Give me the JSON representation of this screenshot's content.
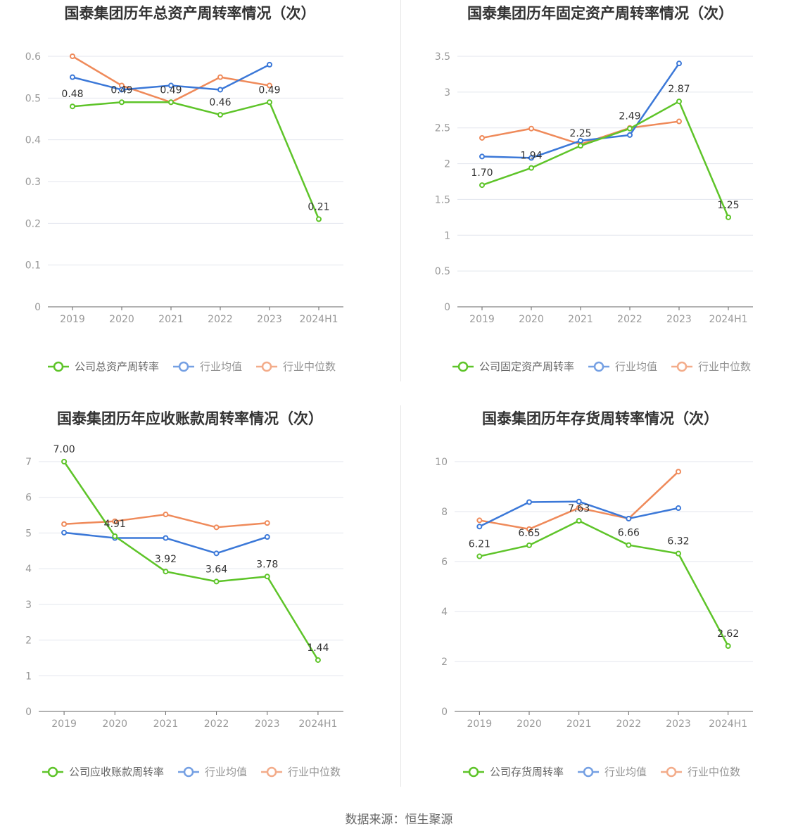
{
  "colors": {
    "company": "#5ec429",
    "mean": "#3b78d8",
    "median": "#ef8a5a"
  },
  "source": "数据来源：恒生聚源",
  "chart_data": [
    {
      "type": "line",
      "title": "国泰集团历年总资产周转率情况（次）",
      "categories": [
        "2019",
        "2020",
        "2021",
        "2022",
        "2023",
        "2024H1"
      ],
      "yticks": [
        "0",
        "0.1",
        "0.2",
        "0.3",
        "0.4",
        "0.5",
        "0.6"
      ],
      "ylim": [
        0,
        0.6
      ],
      "series": [
        {
          "name": "公司总资产周转率",
          "values": [
            0.48,
            0.49,
            0.49,
            0.46,
            0.49,
            0.21
          ],
          "labels": [
            "0.48",
            "0.49",
            "0.49",
            "0.46",
            "0.49",
            "0.21"
          ]
        },
        {
          "name": "行业均值",
          "values": [
            0.55,
            0.52,
            0.53,
            0.52,
            0.58,
            null
          ]
        },
        {
          "name": "行业中位数",
          "values": [
            0.6,
            0.53,
            0.49,
            0.55,
            0.53,
            null
          ]
        }
      ],
      "legend": "bottom"
    },
    {
      "type": "line",
      "title": "国泰集团历年固定资产周转率情况（次）",
      "categories": [
        "2019",
        "2020",
        "2021",
        "2022",
        "2023",
        "2024H1"
      ],
      "yticks": [
        "0",
        "0.5",
        "1",
        "1.5",
        "2",
        "2.5",
        "3",
        "3.5"
      ],
      "ylim": [
        0,
        3.5
      ],
      "series": [
        {
          "name": "公司固定资产周转率",
          "values": [
            1.7,
            1.94,
            2.25,
            2.49,
            2.87,
            1.25
          ],
          "labels": [
            "1.70",
            "1.94",
            "2.25",
            "2.49",
            "2.87",
            "1.25"
          ]
        },
        {
          "name": "行业均值",
          "values": [
            2.1,
            2.08,
            2.32,
            2.4,
            3.4,
            null
          ]
        },
        {
          "name": "行业中位数",
          "values": [
            2.36,
            2.49,
            2.27,
            2.5,
            2.59,
            null
          ]
        }
      ],
      "legend": "bottom"
    },
    {
      "type": "line",
      "title": "国泰集团历年应收账款周转率情况（次）",
      "categories": [
        "2019",
        "2020",
        "2021",
        "2022",
        "2023",
        "2024H1"
      ],
      "yticks": [
        "0",
        "1",
        "2",
        "3",
        "4",
        "5",
        "6",
        "7"
      ],
      "ylim": [
        0,
        7
      ],
      "series": [
        {
          "name": "公司应收账款周转率",
          "values": [
            7.0,
            4.91,
            3.92,
            3.64,
            3.78,
            1.44
          ],
          "labels": [
            "7.00",
            "4.91",
            "3.92",
            "3.64",
            "3.78",
            "1.44"
          ]
        },
        {
          "name": "行业均值",
          "values": [
            5.01,
            4.86,
            4.86,
            4.43,
            4.89,
            null
          ]
        },
        {
          "name": "行业中位数",
          "values": [
            5.25,
            5.33,
            5.52,
            5.16,
            5.28,
            null
          ]
        }
      ],
      "legend": "bottom"
    },
    {
      "type": "line",
      "title": "国泰集团历年存货周转率情况（次）",
      "categories": [
        "2019",
        "2020",
        "2021",
        "2022",
        "2023",
        "2024H1"
      ],
      "yticks": [
        "0",
        "2",
        "4",
        "6",
        "8",
        "10"
      ],
      "ylim": [
        0,
        10
      ],
      "series": [
        {
          "name": "公司存货周转率",
          "values": [
            6.21,
            6.65,
            7.63,
            6.66,
            6.32,
            2.62
          ],
          "labels": [
            "6.21",
            "6.65",
            "7.63",
            "6.66",
            "6.32",
            "2.62"
          ]
        },
        {
          "name": "行业均值",
          "values": [
            7.4,
            8.38,
            8.4,
            7.72,
            8.14,
            null
          ]
        },
        {
          "name": "行业中位数",
          "values": [
            7.65,
            7.3,
            8.15,
            7.72,
            9.6,
            null
          ]
        }
      ],
      "legend": "bottom"
    }
  ]
}
